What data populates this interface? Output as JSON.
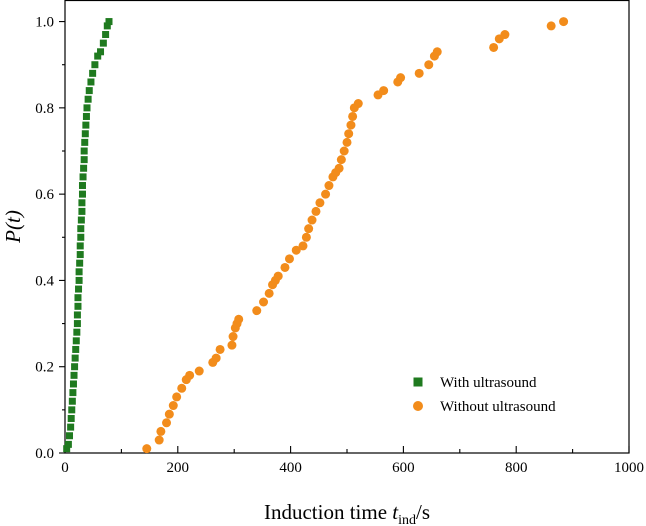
{
  "chart_data": {
    "type": "scatter",
    "xlabel": {
      "main": "Induction time ",
      "var": "t",
      "sub": "ind",
      "unit": "/s"
    },
    "ylabel": {
      "var": "P(t)"
    },
    "xlim": [
      0,
      1000
    ],
    "ylim": [
      0,
      1.05
    ],
    "x_ticks": [
      0,
      200,
      400,
      600,
      800,
      1000
    ],
    "x_tick_labels": [
      "0",
      "200",
      "400",
      "600",
      "800",
      "1000"
    ],
    "y_ticks": [
      0,
      0.2,
      0.4,
      0.6,
      0.8,
      1.0
    ],
    "y_tick_labels": [
      "0.0",
      "0.2",
      "0.4",
      "0.6",
      "0.8",
      "1.0"
    ],
    "legend_position": "bottom-right",
    "series": [
      {
        "name": "With ultrasound",
        "marker": "square",
        "color": "#1f7a1f",
        "points": [
          [
            3,
            0.01
          ],
          [
            6,
            0.02
          ],
          [
            8,
            0.04
          ],
          [
            10,
            0.06
          ],
          [
            11,
            0.08
          ],
          [
            12,
            0.1
          ],
          [
            13,
            0.12
          ],
          [
            14,
            0.14
          ],
          [
            15,
            0.16
          ],
          [
            16,
            0.18
          ],
          [
            17,
            0.2
          ],
          [
            18,
            0.22
          ],
          [
            19,
            0.24
          ],
          [
            20,
            0.26
          ],
          [
            21,
            0.28
          ],
          [
            22,
            0.3
          ],
          [
            22,
            0.32
          ],
          [
            23,
            0.34
          ],
          [
            23,
            0.36
          ],
          [
            24,
            0.38
          ],
          [
            25,
            0.4
          ],
          [
            25,
            0.42
          ],
          [
            26,
            0.44
          ],
          [
            27,
            0.46
          ],
          [
            27,
            0.48
          ],
          [
            28,
            0.5
          ],
          [
            28,
            0.52
          ],
          [
            29,
            0.54
          ],
          [
            30,
            0.56
          ],
          [
            30,
            0.58
          ],
          [
            31,
            0.6
          ],
          [
            31,
            0.62
          ],
          [
            32,
            0.64
          ],
          [
            33,
            0.66
          ],
          [
            34,
            0.68
          ],
          [
            34,
            0.7
          ],
          [
            35,
            0.72
          ],
          [
            36,
            0.74
          ],
          [
            37,
            0.76
          ],
          [
            38,
            0.78
          ],
          [
            39,
            0.8
          ],
          [
            41,
            0.82
          ],
          [
            43,
            0.84
          ],
          [
            46,
            0.86
          ],
          [
            49,
            0.88
          ],
          [
            53,
            0.9
          ],
          [
            58,
            0.92
          ],
          [
            63,
            0.93
          ],
          [
            68,
            0.95
          ],
          [
            72,
            0.97
          ],
          [
            75,
            0.99
          ],
          [
            78,
            1.0
          ]
        ]
      },
      {
        "name": "Without ultrasound",
        "marker": "circle",
        "color": "#f28c1b",
        "points": [
          [
            145,
            0.01
          ],
          [
            167,
            0.03
          ],
          [
            170,
            0.05
          ],
          [
            180,
            0.07
          ],
          [
            185,
            0.09
          ],
          [
            192,
            0.11
          ],
          [
            198,
            0.13
          ],
          [
            207,
            0.15
          ],
          [
            215,
            0.17
          ],
          [
            221,
            0.18
          ],
          [
            238,
            0.19
          ],
          [
            262,
            0.21
          ],
          [
            268,
            0.22
          ],
          [
            275,
            0.24
          ],
          [
            296,
            0.25
          ],
          [
            298,
            0.27
          ],
          [
            302,
            0.29
          ],
          [
            305,
            0.3
          ],
          [
            308,
            0.31
          ],
          [
            340,
            0.33
          ],
          [
            352,
            0.35
          ],
          [
            362,
            0.37
          ],
          [
            368,
            0.39
          ],
          [
            373,
            0.4
          ],
          [
            378,
            0.41
          ],
          [
            390,
            0.43
          ],
          [
            398,
            0.45
          ],
          [
            410,
            0.47
          ],
          [
            422,
            0.48
          ],
          [
            428,
            0.5
          ],
          [
            432,
            0.52
          ],
          [
            438,
            0.54
          ],
          [
            445,
            0.56
          ],
          [
            452,
            0.58
          ],
          [
            462,
            0.6
          ],
          [
            468,
            0.62
          ],
          [
            475,
            0.64
          ],
          [
            480,
            0.65
          ],
          [
            486,
            0.66
          ],
          [
            490,
            0.68
          ],
          [
            495,
            0.7
          ],
          [
            500,
            0.72
          ],
          [
            503,
            0.74
          ],
          [
            507,
            0.76
          ],
          [
            510,
            0.78
          ],
          [
            513,
            0.8
          ],
          [
            520,
            0.81
          ],
          [
            555,
            0.83
          ],
          [
            565,
            0.84
          ],
          [
            590,
            0.86
          ],
          [
            595,
            0.87
          ],
          [
            628,
            0.88
          ],
          [
            645,
            0.9
          ],
          [
            655,
            0.92
          ],
          [
            660,
            0.93
          ],
          [
            760,
            0.94
          ],
          [
            770,
            0.96
          ],
          [
            780,
            0.97
          ],
          [
            862,
            0.99
          ],
          [
            884,
            1.0
          ]
        ]
      }
    ]
  }
}
